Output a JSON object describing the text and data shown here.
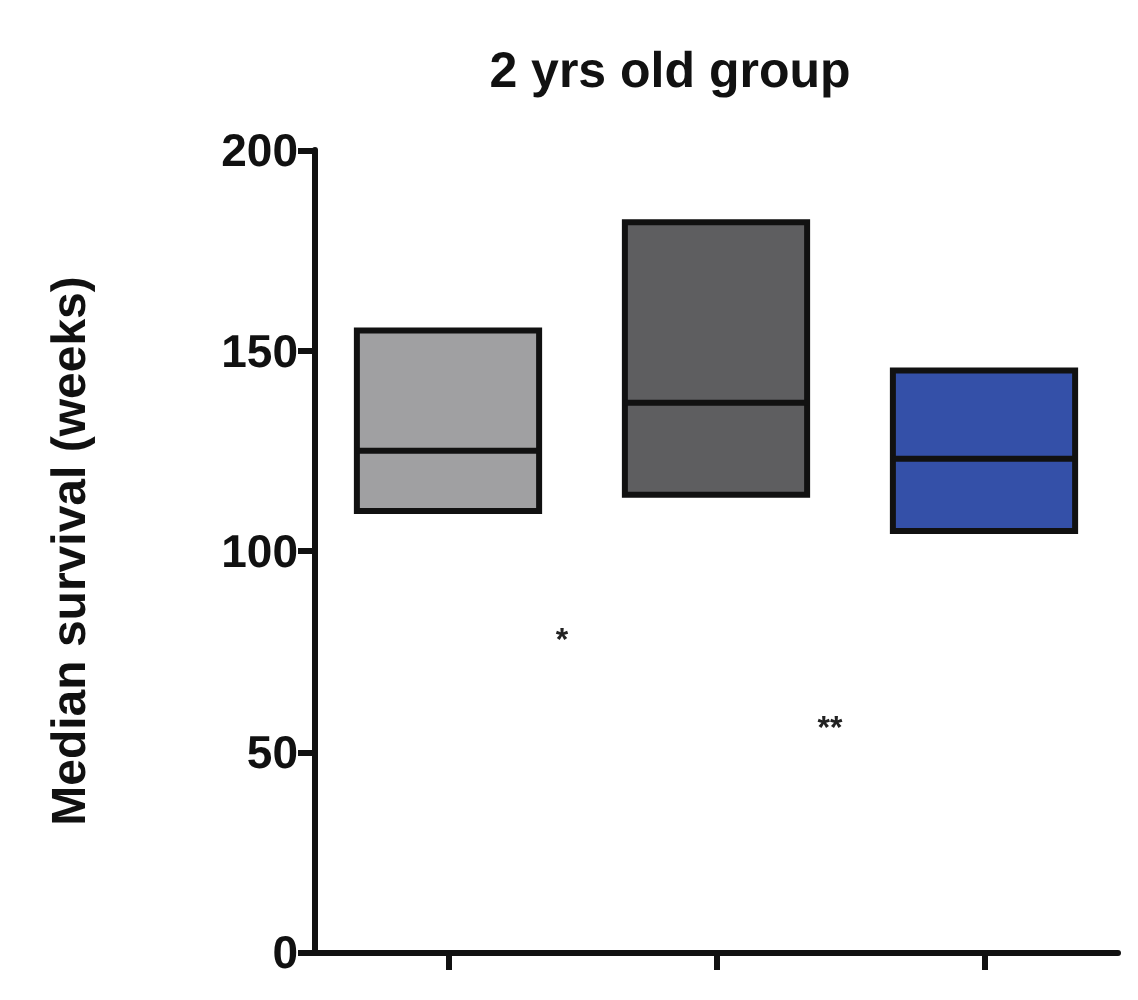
{
  "chart_data": {
    "type": "box",
    "title": "2 yrs old group",
    "ylabel": "Median survival (weeks)",
    "categories": [
      null,
      null,
      null
    ],
    "series": [
      {
        "color": "#a0a0a2",
        "boxes": [
          {
            "low": 110,
            "q1": 110,
            "median": 125,
            "q3": 155,
            "high": 155
          },
          null,
          null
        ]
      },
      {
        "color": "#5e5e60",
        "boxes": [
          null,
          {
            "low": 114,
            "q1": 114,
            "median": 137,
            "q3": 182,
            "high": 182
          },
          null
        ]
      },
      {
        "color": "#3450a8",
        "boxes": [
          null,
          null,
          {
            "low": 105,
            "q1": 105,
            "median": 123,
            "q3": 145,
            "high": 145
          }
        ]
      }
    ],
    "ylim": [
      0,
      200
    ],
    "yticks": [
      0,
      50,
      100,
      150,
      200
    ],
    "grid": false,
    "annotations": [
      "*",
      "**"
    ]
  }
}
